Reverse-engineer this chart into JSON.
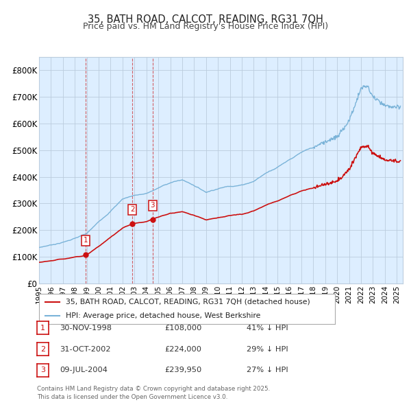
{
  "title": "35, BATH ROAD, CALCOT, READING, RG31 7QH",
  "subtitle": "Price paid vs. HM Land Registry's House Price Index (HPI)",
  "purchases": [
    {
      "label": "1",
      "date_str": "30-NOV-1998",
      "price": 108000,
      "pct": "41%",
      "x_year": 1998.917
    },
    {
      "label": "2",
      "date_str": "31-OCT-2002",
      "price": 224000,
      "pct": "29%",
      "x_year": 2002.833
    },
    {
      "label": "3",
      "date_str": "09-JUL-2004",
      "price": 239950,
      "pct": "27%",
      "x_year": 2004.519
    }
  ],
  "hpi_color": "#7ab3d8",
  "price_color": "#cc1111",
  "marker_color": "#cc1111",
  "ylim": [
    0,
    850000
  ],
  "xlim_start": 1995.0,
  "xlim_end": 2025.5,
  "yticks": [
    0,
    100000,
    200000,
    300000,
    400000,
    500000,
    600000,
    700000,
    800000
  ],
  "ytick_labels": [
    "£0",
    "£100K",
    "£200K",
    "£300K",
    "£400K",
    "£500K",
    "£600K",
    "£700K",
    "£800K"
  ],
  "xticks": [
    1995,
    1996,
    1997,
    1998,
    1999,
    2000,
    2001,
    2002,
    2003,
    2004,
    2005,
    2006,
    2007,
    2008,
    2009,
    2010,
    2011,
    2012,
    2013,
    2014,
    2015,
    2016,
    2017,
    2018,
    2019,
    2020,
    2021,
    2022,
    2023,
    2024,
    2025
  ],
  "legend_line1": "35, BATH ROAD, CALCOT, READING, RG31 7QH (detached house)",
  "legend_line2": "HPI: Average price, detached house, West Berkshire",
  "footer": "Contains HM Land Registry data © Crown copyright and database right 2025.\nThis data is licensed under the Open Government Licence v3.0.",
  "background_color": "#ffffff",
  "chart_bg_color": "#ddeeff",
  "grid_color": "#bbccdd"
}
